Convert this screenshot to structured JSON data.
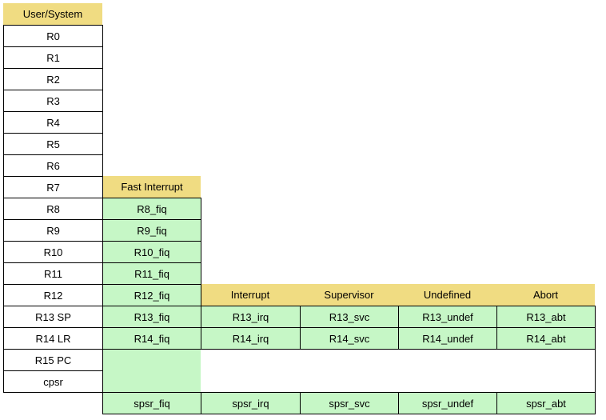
{
  "headers": {
    "user": "User/System",
    "fiq": "Fast Interrupt",
    "irq": "Interrupt",
    "svc": "Supervisor",
    "und": "Undefined",
    "abt": "Abort"
  },
  "user_registers": [
    "R0",
    "R1",
    "R2",
    "R3",
    "R4",
    "R5",
    "R6",
    "R7",
    "R8",
    "R9",
    "R10",
    "R11",
    "R12",
    "R13 SP",
    "R14 LR",
    "R15 PC",
    "cpsr"
  ],
  "fiq_registers": [
    "R8_fiq",
    "R9_fiq",
    "R10_fiq",
    "R11_fiq",
    "R12_fiq",
    "R13_fiq",
    "R14_fiq"
  ],
  "banked": {
    "irq": [
      "R13_irq",
      "R14_irq"
    ],
    "svc": [
      "R13_svc",
      "R14_svc"
    ],
    "und": [
      "R13_undef",
      "R14_undef"
    ],
    "abt": [
      "R13_abt",
      "R14_abt"
    ]
  },
  "spsr": [
    "spsr_fiq",
    "spsr_irq",
    "spsr_svc",
    "spsr_undef",
    "spsr_abt"
  ],
  "colors": {
    "header": "#f0dc82",
    "banked": "#c6f7c6",
    "border": "#000000"
  }
}
